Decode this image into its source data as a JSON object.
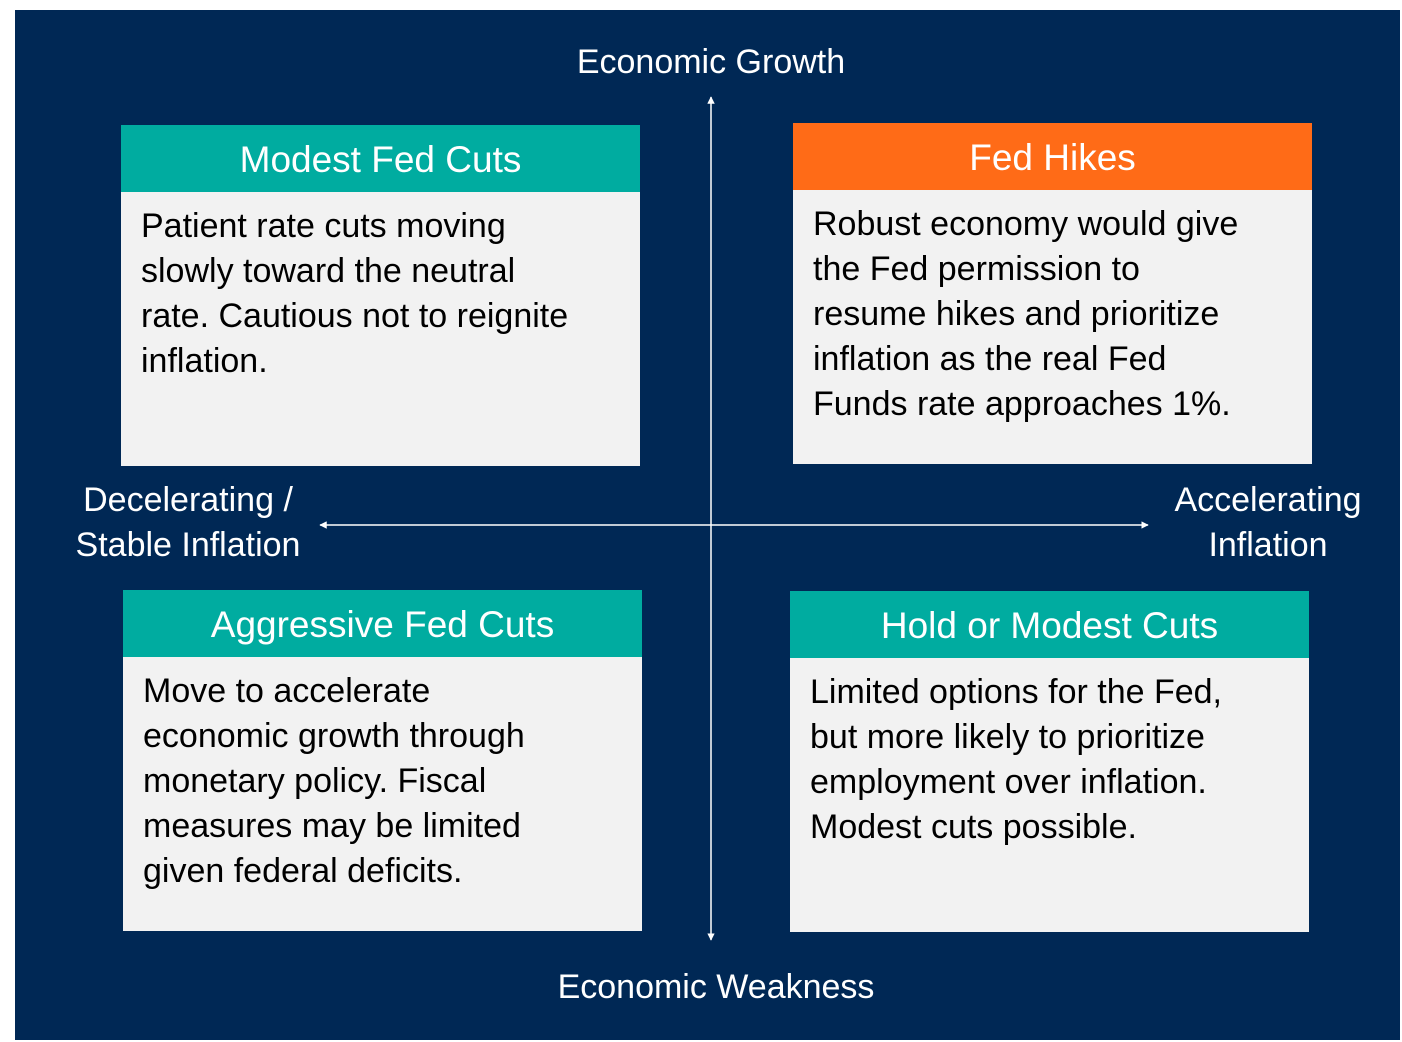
{
  "axes": {
    "top": "Economic Growth",
    "bottom": "Economic Weakness",
    "left": [
      "Decelerating /",
      "Stable Inflation"
    ],
    "right": [
      "Accelerating",
      "Inflation"
    ]
  },
  "quadrants": [
    {
      "title": "Modest Fed Cuts",
      "lines": [
        "Patient rate cuts moving",
        "slowly toward the neutral",
        "rate. Cautious not to reignite",
        "inflation."
      ]
    },
    {
      "title": "Fed Hikes",
      "lines": [
        "Robust economy would give",
        "the Fed permission to",
        "resume hikes and prioritize",
        "inflation as the real Fed",
        "Funds rate approaches 1%."
      ]
    },
    {
      "title": "Aggressive Fed Cuts",
      "lines": [
        "Move to accelerate",
        "economic growth through",
        "monetary policy. Fiscal",
        "measures may be limited",
        "given federal deficits."
      ]
    },
    {
      "title": "Hold or Modest Cuts",
      "lines": [
        "Limited options for the Fed,",
        "but more likely to prioritize",
        "employment over inflation.",
        "Modest cuts possible."
      ]
    }
  ]
}
